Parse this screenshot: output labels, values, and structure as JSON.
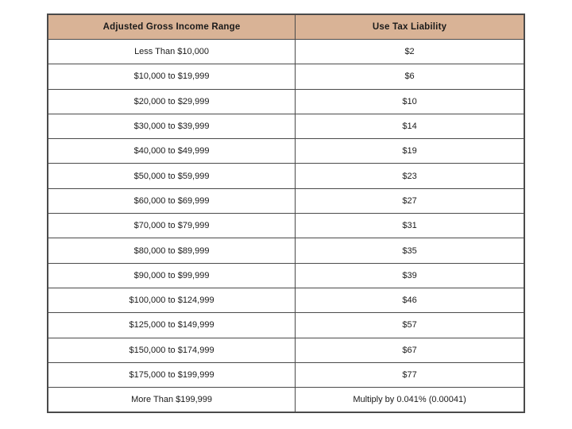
{
  "colors": {
    "header_bg": "#d9b396",
    "border": "#4a4a4a",
    "text": "#1a1a1a"
  },
  "table": {
    "headers": [
      "Adjusted Gross Income Range",
      "Use Tax Liability"
    ],
    "rows": [
      [
        "Less Than $10,000",
        "$2"
      ],
      [
        "$10,000 to $19,999",
        "$6"
      ],
      [
        "$20,000 to $29,999",
        "$10"
      ],
      [
        "$30,000 to $39,999",
        "$14"
      ],
      [
        "$40,000 to $49,999",
        "$19"
      ],
      [
        "$50,000 to $59,999",
        "$23"
      ],
      [
        "$60,000 to $69,999",
        "$27"
      ],
      [
        "$70,000 to $79,999",
        "$31"
      ],
      [
        "$80,000 to $89,999",
        "$35"
      ],
      [
        "$90,000 to $99,999",
        "$39"
      ],
      [
        "$100,000 to $124,999",
        "$46"
      ],
      [
        "$125,000 to $149,999",
        "$57"
      ],
      [
        "$150,000 to $174,999",
        "$67"
      ],
      [
        "$175,000 to $199,999",
        "$77"
      ],
      [
        "More Than $199,999",
        "Multiply by 0.041% (0.00041)"
      ]
    ]
  }
}
